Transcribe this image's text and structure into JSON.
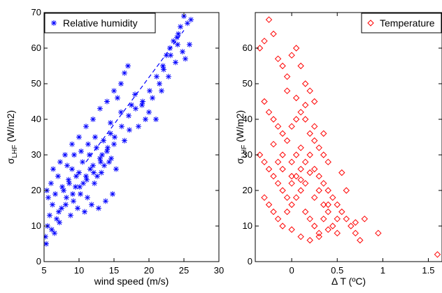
{
  "colors": {
    "humidity": "#0000ff",
    "temperature": "#ff0000",
    "axis": "#000000"
  },
  "chart_data": [
    {
      "type": "scatter",
      "marker": "asterisk",
      "xlabel": "wind speed (m/s)",
      "ylabel_main": "σ",
      "ylabel_sub": "LHF",
      "ylabel_unit": " (W/m2)",
      "xlim": [
        5,
        30
      ],
      "ylim": [
        0,
        70
      ],
      "xticks": [
        "5",
        "10",
        "15",
        "20",
        "25",
        "30"
      ],
      "yticks": [
        "0",
        "10",
        "20",
        "30",
        "40",
        "50",
        "60",
        "70"
      ],
      "legend": {
        "label": "Relative humidity",
        "position": "top-left"
      },
      "fit_line": {
        "style": "dashed",
        "x": [
          11,
          25
        ],
        "y": [
          28,
          65
        ]
      },
      "series": [
        {
          "color": "#0000ff",
          "points": [
            [
              5.2,
              7
            ],
            [
              5.5,
              10
            ],
            [
              5.8,
              13
            ],
            [
              6.2,
              16
            ],
            [
              6.8,
              12
            ],
            [
              7.5,
              15
            ],
            [
              8.2,
              18
            ],
            [
              5.4,
              20
            ],
            [
              6.0,
              22
            ],
            [
              7.0,
              24
            ],
            [
              7.8,
              20
            ],
            [
              8.5,
              23
            ],
            [
              9.0,
              26
            ],
            [
              9.5,
              21
            ],
            [
              10.0,
              25
            ],
            [
              10.5,
              28
            ],
            [
              11.0,
              24
            ],
            [
              11.5,
              30
            ],
            [
              12.0,
              27
            ],
            [
              12.5,
              32
            ],
            [
              13.0,
              29
            ],
            [
              13.5,
              34
            ],
            [
              14.0,
              31
            ],
            [
              14.5,
              36
            ],
            [
              15.0,
              33
            ],
            [
              9.2,
              17
            ],
            [
              10.2,
              19
            ],
            [
              11.2,
              18
            ],
            [
              12.2,
              22
            ],
            [
              13.2,
              25
            ],
            [
              8.0,
              30
            ],
            [
              9.0,
              33
            ],
            [
              10.0,
              35
            ],
            [
              11.0,
              38
            ],
            [
              12.0,
              40
            ],
            [
              13.0,
              43
            ],
            [
              14.0,
              45
            ],
            [
              15.0,
              48
            ],
            [
              16.0,
              50
            ],
            [
              16.5,
              53
            ],
            [
              17.0,
              55
            ],
            [
              15.5,
              46
            ],
            [
              14.5,
              39
            ],
            [
              16.0,
              42
            ],
            [
              17.5,
              44
            ],
            [
              18.0,
              47
            ],
            [
              19.0,
              44
            ],
            [
              19.5,
              40
            ],
            [
              20.0,
              42
            ],
            [
              21.0,
              40
            ],
            [
              20.5,
              46
            ],
            [
              21.5,
              50
            ],
            [
              22.0,
              55
            ],
            [
              22.5,
              58
            ],
            [
              23.0,
              60
            ],
            [
              23.5,
              62
            ],
            [
              24.0,
              63
            ],
            [
              24.5,
              66
            ],
            [
              25.0,
              69
            ],
            [
              25.5,
              67
            ],
            [
              26.0,
              68
            ],
            [
              24.8,
              59
            ],
            [
              25.2,
              57
            ],
            [
              23.8,
              56
            ],
            [
              22.8,
              52
            ],
            [
              25.8,
              61
            ],
            [
              24.2,
              64
            ],
            [
              21.8,
              48
            ],
            [
              18.5,
              38
            ],
            [
              17.2,
              37
            ],
            [
              16.5,
              34
            ],
            [
              6.5,
              8
            ],
            [
              7.2,
              11
            ],
            [
              8.8,
              13
            ],
            [
              9.8,
              15
            ],
            [
              10.8,
              14
            ],
            [
              11.8,
              16
            ],
            [
              12.8,
              15
            ],
            [
              13.8,
              17
            ],
            [
              14.8,
              19
            ],
            [
              6.3,
              26
            ],
            [
              7.3,
              28
            ],
            [
              8.3,
              27
            ],
            [
              9.3,
              30
            ],
            [
              10.3,
              31
            ],
            [
              11.3,
              33
            ],
            [
              12.3,
              35
            ],
            [
              13.3,
              30
            ],
            [
              14.3,
              28
            ],
            [
              15.3,
              26
            ],
            [
              5.6,
              18
            ],
            [
              6.6,
              19
            ],
            [
              7.6,
              21
            ],
            [
              8.6,
              22
            ],
            [
              9.6,
              24
            ],
            [
              10.6,
              22
            ],
            [
              11.6,
              26
            ],
            [
              12.6,
              24
            ],
            [
              13.6,
              27
            ],
            [
              14.6,
              29
            ],
            [
              5.3,
              5
            ],
            [
              6.1,
              9
            ],
            [
              7.1,
              14
            ],
            [
              8.1,
              16
            ],
            [
              9.1,
              19
            ],
            [
              10.1,
              21
            ],
            [
              11.1,
              23
            ],
            [
              12.1,
              25
            ],
            [
              13.1,
              28
            ],
            [
              14.1,
              32
            ],
            [
              15.1,
              35
            ],
            [
              16.1,
              38
            ],
            [
              17.1,
              41
            ],
            [
              18.1,
              43
            ],
            [
              19.1,
              45
            ],
            [
              20.1,
              48
            ],
            [
              21.1,
              52
            ],
            [
              22.1,
              54
            ],
            [
              23.1,
              58
            ],
            [
              24.1,
              61
            ]
          ]
        }
      ]
    },
    {
      "type": "scatter",
      "marker": "diamond",
      "xlabel": "Δ T (ºC)",
      "ylabel_main": "σ",
      "ylabel_sub": "LHF",
      "ylabel_unit": " (W/m2)",
      "xlim": [
        -0.4,
        1.65
      ],
      "ylim": [
        0,
        70
      ],
      "xticks": [
        "0",
        "0.5",
        "1",
        "1.5"
      ],
      "yticks": [
        "0",
        "10",
        "20",
        "30",
        "40",
        "50",
        "60"
      ],
      "legend": {
        "label": "Temperature",
        "position": "top-right"
      },
      "series": [
        {
          "color": "#ff0000",
          "points": [
            [
              -0.35,
              60
            ],
            [
              -0.3,
              62
            ],
            [
              -0.25,
              68
            ],
            [
              -0.2,
              64
            ],
            [
              -0.15,
              57
            ],
            [
              -0.1,
              55
            ],
            [
              -0.05,
              52
            ],
            [
              0.0,
              58
            ],
            [
              0.05,
              60
            ],
            [
              0.1,
              55
            ],
            [
              0.15,
              50
            ],
            [
              0.2,
              48
            ],
            [
              0.25,
              45
            ],
            [
              -0.3,
              45
            ],
            [
              -0.25,
              42
            ],
            [
              -0.2,
              40
            ],
            [
              -0.15,
              38
            ],
            [
              -0.1,
              36
            ],
            [
              -0.05,
              34
            ],
            [
              0.0,
              38
            ],
            [
              0.05,
              40
            ],
            [
              0.1,
              42
            ],
            [
              0.15,
              44
            ],
            [
              0.2,
              36
            ],
            [
              0.25,
              34
            ],
            [
              0.3,
              32
            ],
            [
              0.35,
              30
            ],
            [
              0.4,
              28
            ],
            [
              -0.35,
              30
            ],
            [
              -0.3,
              28
            ],
            [
              -0.25,
              26
            ],
            [
              -0.2,
              24
            ],
            [
              -0.15,
              22
            ],
            [
              -0.1,
              20
            ],
            [
              -0.05,
              18
            ],
            [
              0.0,
              22
            ],
            [
              0.05,
              24
            ],
            [
              0.1,
              26
            ],
            [
              0.15,
              28
            ],
            [
              0.2,
              30
            ],
            [
              0.25,
              26
            ],
            [
              0.3,
              24
            ],
            [
              0.35,
              22
            ],
            [
              0.4,
              20
            ],
            [
              0.45,
              18
            ],
            [
              0.5,
              16
            ],
            [
              -0.3,
              18
            ],
            [
              -0.25,
              16
            ],
            [
              -0.2,
              14
            ],
            [
              -0.15,
              12
            ],
            [
              -0.1,
              10
            ],
            [
              -0.05,
              14
            ],
            [
              0.0,
              16
            ],
            [
              0.05,
              18
            ],
            [
              0.1,
              20
            ],
            [
              0.15,
              14
            ],
            [
              0.2,
              12
            ],
            [
              0.25,
              10
            ],
            [
              0.3,
              8
            ],
            [
              0.35,
              12
            ],
            [
              0.4,
              14
            ],
            [
              0.45,
              10
            ],
            [
              0.5,
              8
            ],
            [
              0.55,
              14
            ],
            [
              0.6,
              12
            ],
            [
              0.65,
              10
            ],
            [
              0.7,
              8
            ],
            [
              0.75,
              6
            ],
            [
              0.55,
              25
            ],
            [
              0.6,
              20
            ],
            [
              -0.2,
              33
            ],
            [
              -0.1,
              30
            ],
            [
              0.0,
              28
            ],
            [
              0.1,
              32
            ],
            [
              0.2,
              25
            ],
            [
              0.3,
              20
            ],
            [
              0.4,
              16
            ],
            [
              0.5,
              12
            ],
            [
              0.0,
              9
            ],
            [
              0.1,
              7
            ],
            [
              0.2,
              6
            ],
            [
              0.3,
              7
            ],
            [
              0.4,
              9
            ],
            [
              0.7,
              11
            ],
            [
              0.8,
              12
            ],
            [
              0.95,
              8
            ],
            [
              1.6,
              2
            ],
            [
              -0.1,
              26
            ],
            [
              0.0,
              24
            ],
            [
              0.1,
              23
            ],
            [
              -0.05,
              48
            ],
            [
              0.05,
              46
            ],
            [
              0.15,
              40
            ],
            [
              0.25,
              38
            ],
            [
              0.35,
              36
            ],
            [
              -0.15,
              28
            ],
            [
              0.05,
              30
            ],
            [
              0.15,
              22
            ],
            [
              0.25,
              18
            ],
            [
              0.35,
              16
            ]
          ]
        }
      ]
    }
  ]
}
